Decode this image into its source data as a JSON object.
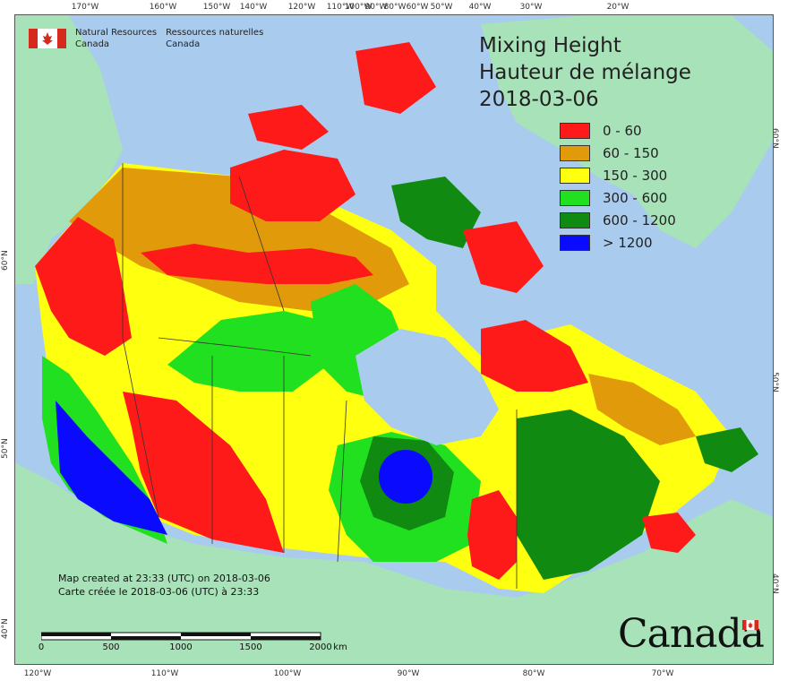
{
  "agency": {
    "name_en_1": "Natural Resources",
    "name_en_2": "Canada",
    "name_fr_1": "Ressources naturelles",
    "name_fr_2": "Canada"
  },
  "title": {
    "line1": "Mixing Height",
    "line2": "Hauteur de mélange",
    "date": "2018-03-06"
  },
  "legend": [
    {
      "label": "0 - 60",
      "color": "#ff1a1a"
    },
    {
      "label": "60 - 150",
      "color": "#e09a0a"
    },
    {
      "label": "150 - 300",
      "color": "#ffff10"
    },
    {
      "label": "300 - 600",
      "color": "#20e020"
    },
    {
      "label": "600 - 1200",
      "color": "#108a10"
    },
    {
      "label": "> 1200",
      "color": "#0a0aff"
    }
  ],
  "colors": {
    "ocean": "#a9ccee",
    "foreign_land": "#a8e2b8",
    "boundary": "#333333"
  },
  "created": {
    "en": "Map created at 23:33 (UTC) on 2018-03-06",
    "fr": "Carte créée le 2018-03-06 (UTC) à 23:33"
  },
  "scale": {
    "labels": [
      "0",
      "500",
      "1000",
      "1500",
      "2000"
    ],
    "unit": "km"
  },
  "wordmark": "Canada",
  "ticks": {
    "top": [
      "170°W",
      "160°W",
      "150°W",
      "140°W",
      "120°W",
      "110°W",
      "100°W",
      "90°W",
      "80°W",
      "60°W",
      "50°W",
      "40°W",
      "30°W",
      "20°W"
    ],
    "bottom": [
      "120°W",
      "110°W",
      "100°W",
      "90°W",
      "80°W",
      "70°W"
    ],
    "left": [
      "60°N",
      "50°N",
      "40°N"
    ],
    "right": [
      "60°N",
      "50°N",
      "40°N"
    ]
  }
}
